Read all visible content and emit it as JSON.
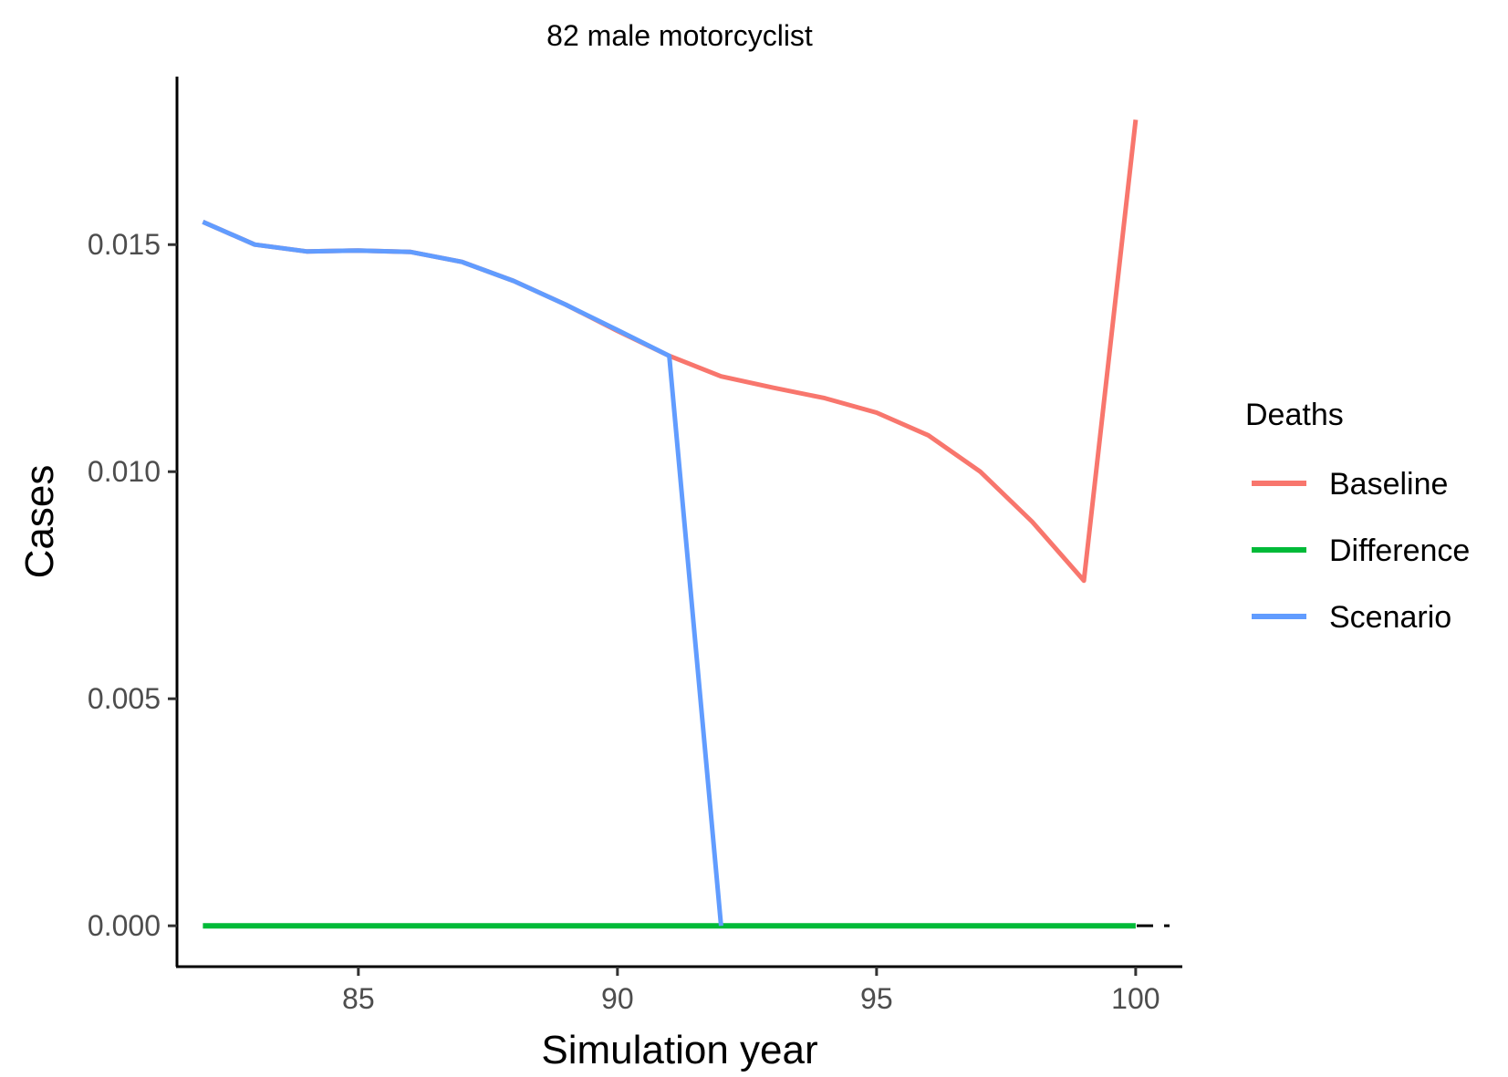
{
  "chart_data": {
    "type": "line",
    "title": "82 male motorcyclist",
    "xlabel": "Simulation year",
    "ylabel": "Cases",
    "xlim": [
      81.5,
      100.9
    ],
    "ylim": [
      -0.0009,
      0.0187
    ],
    "x_ticks": [
      85,
      90,
      95,
      100
    ],
    "x_tick_labels": [
      "85",
      "90",
      "95",
      "100"
    ],
    "y_ticks": [
      0.0,
      0.005,
      0.01,
      0.015
    ],
    "y_tick_labels": [
      "0.000",
      "0.005",
      "0.010",
      "0.015"
    ],
    "grid": false,
    "reference_line": {
      "y": 0,
      "style": "dashed",
      "color": "#000000"
    },
    "legend": {
      "title": "Deaths",
      "position": "right",
      "entries": [
        "Baseline",
        "Difference",
        "Scenario"
      ]
    },
    "series": [
      {
        "name": "Baseline",
        "color": "#F8766D",
        "x": [
          82,
          83,
          84,
          85,
          86,
          87,
          88,
          89,
          90,
          91,
          92,
          93,
          94,
          95,
          96,
          97,
          98,
          99,
          100
        ],
        "y": [
          0.0155,
          0.015,
          0.01485,
          0.01487,
          0.01484,
          0.01462,
          0.0142,
          0.01368,
          0.0131,
          0.01255,
          0.0121,
          0.01185,
          0.01162,
          0.0113,
          0.0108,
          0.01,
          0.0089,
          0.0076,
          0.01775
        ]
      },
      {
        "name": "Difference",
        "color": "#00BA38",
        "x": [
          82,
          83,
          84,
          85,
          86,
          87,
          88,
          89,
          90,
          91,
          92,
          93,
          94,
          95,
          96,
          97,
          98,
          99,
          100
        ],
        "y": [
          0,
          0,
          0,
          0,
          0,
          0,
          0,
          0,
          0,
          0,
          0,
          0,
          0,
          0,
          0,
          0,
          0,
          0,
          0
        ]
      },
      {
        "name": "Scenario",
        "color": "#619CFF",
        "x": [
          82,
          83,
          84,
          85,
          86,
          87,
          88,
          89,
          90,
          91,
          92
        ],
        "y": [
          0.0155,
          0.015,
          0.01485,
          0.01487,
          0.01484,
          0.01462,
          0.0142,
          0.01368,
          0.01312,
          0.01255,
          0.0
        ]
      }
    ]
  }
}
